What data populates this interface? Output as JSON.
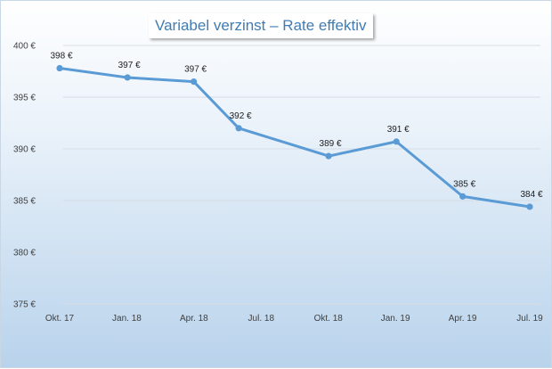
{
  "chart_data": {
    "type": "line",
    "title": "Variabel verzinst – Rate effektiv",
    "xlabel": "",
    "ylabel": "",
    "ylim": [
      375,
      400
    ],
    "y_ticks": [
      "375 €",
      "380 €",
      "385 €",
      "390 €",
      "395 €",
      "400 €"
    ],
    "y_tick_values": [
      375,
      380,
      385,
      390,
      395,
      400
    ],
    "x_ticks": [
      "Okt. 17",
      "Jan. 18",
      "Apr. 18",
      "Jul. 18",
      "Okt. 18",
      "Jan. 19",
      "Apr. 19",
      "Jul. 19"
    ],
    "x": [
      "2017-10-01",
      "2018-01-01",
      "2018-04-01",
      "2018-06-01",
      "2018-10-01",
      "2019-01-01",
      "2019-04-01",
      "2019-07-01"
    ],
    "values": [
      397.8,
      396.9,
      396.5,
      392.0,
      389.3,
      390.7,
      385.4,
      384.4
    ],
    "data_labels": [
      "398 €",
      "397 €",
      "397 €",
      "392 €",
      "389 €",
      "391 €",
      "385 €",
      "384 €"
    ],
    "grid": true,
    "legend": "none",
    "line_color": "#5b9bd5",
    "grid_color": "#d6dde6"
  }
}
